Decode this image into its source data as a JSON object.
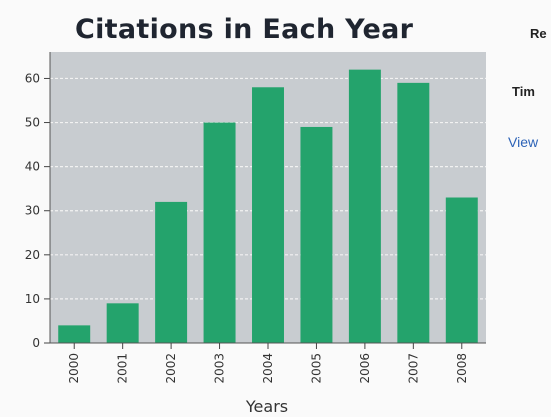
{
  "chart_data": {
    "type": "bar",
    "title": "Citations in Each Year",
    "xlabel": "Years",
    "ylabel": "",
    "categories": [
      "2000",
      "2001",
      "2002",
      "2003",
      "2004",
      "2005",
      "2006",
      "2007",
      "2008"
    ],
    "values": [
      4,
      9,
      32,
      50,
      58,
      49,
      62,
      59,
      33
    ],
    "ylim": [
      0,
      66
    ],
    "yticks": [
      0,
      10,
      20,
      30,
      40,
      50,
      60
    ],
    "grid": true,
    "colors": {
      "bar": "#24a36c",
      "plot_background": "#c8ccd0",
      "gridline": "#f2f2f2"
    }
  },
  "side_panel": {
    "label_1": "Re",
    "label_2": "Tim",
    "link": "View"
  }
}
